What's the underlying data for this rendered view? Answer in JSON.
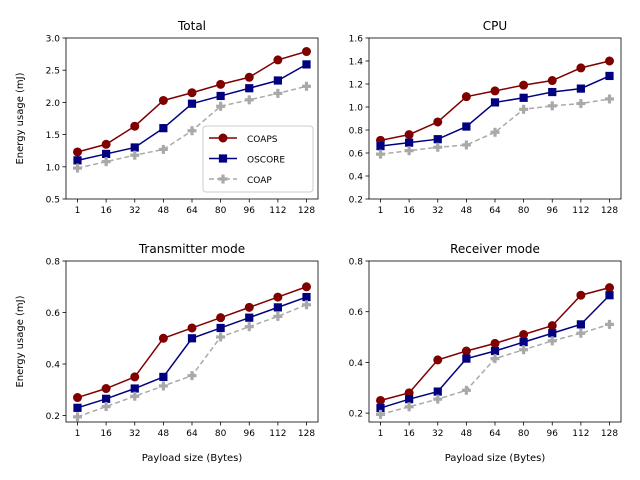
{
  "chart_data": [
    {
      "type": "line",
      "title": "Total",
      "xlabel": "",
      "ylabel": "Energy usage (mJ)",
      "categories": [
        "1",
        "16",
        "32",
        "48",
        "64",
        "80",
        "96",
        "112",
        "128"
      ],
      "ylim": [
        0.5,
        3.0
      ],
      "yticks": [
        "0.5",
        "1.0",
        "1.5",
        "2.0",
        "2.5",
        "3.0"
      ],
      "legend": "center-right",
      "series": [
        {
          "name": "COAPS",
          "color": "#800000",
          "marker": "circle",
          "values": [
            1.23,
            1.35,
            1.63,
            2.03,
            2.15,
            2.28,
            2.39,
            2.66,
            2.79
          ]
        },
        {
          "name": "OSCORE",
          "color": "#000080",
          "marker": "square",
          "values": [
            1.1,
            1.2,
            1.3,
            1.6,
            1.98,
            2.1,
            2.22,
            2.34,
            2.59
          ]
        },
        {
          "name": "COAP",
          "color": "#a9a9a9",
          "marker": "plus",
          "values": [
            0.98,
            1.08,
            1.18,
            1.27,
            1.56,
            1.94,
            2.04,
            2.14,
            2.25
          ]
        }
      ]
    },
    {
      "type": "line",
      "title": "CPU",
      "xlabel": "",
      "ylabel": "",
      "categories": [
        "1",
        "16",
        "32",
        "48",
        "64",
        "80",
        "96",
        "112",
        "128"
      ],
      "ylim": [
        0.2,
        1.6
      ],
      "yticks": [
        "0.2",
        "0.4",
        "0.6",
        "0.8",
        "1.0",
        "1.2",
        "1.4",
        "1.6"
      ],
      "legend": "",
      "series": [
        {
          "name": "COAPS",
          "color": "#800000",
          "marker": "circle",
          "values": [
            0.71,
            0.76,
            0.87,
            1.09,
            1.14,
            1.19,
            1.23,
            1.34,
            1.4
          ]
        },
        {
          "name": "OSCORE",
          "color": "#000080",
          "marker": "square",
          "values": [
            0.66,
            0.69,
            0.72,
            0.83,
            1.04,
            1.08,
            1.13,
            1.16,
            1.27
          ]
        },
        {
          "name": "COAP",
          "color": "#a9a9a9",
          "marker": "plus",
          "values": [
            0.59,
            0.62,
            0.65,
            0.67,
            0.78,
            0.98,
            1.01,
            1.03,
            1.07
          ]
        }
      ]
    },
    {
      "type": "line",
      "title": "Transmitter mode",
      "xlabel": "Payload size (Bytes)",
      "ylabel": "Energy usage (mJ)",
      "categories": [
        "1",
        "16",
        "32",
        "48",
        "64",
        "80",
        "96",
        "112",
        "128"
      ],
      "ylim": [
        0.175,
        0.8
      ],
      "yticks": [
        "0.2",
        "0.4",
        "0.6",
        "0.8"
      ],
      "legend": "",
      "series": [
        {
          "name": "COAPS",
          "color": "#800000",
          "marker": "circle",
          "values": [
            0.27,
            0.305,
            0.35,
            0.5,
            0.54,
            0.58,
            0.62,
            0.66,
            0.7
          ]
        },
        {
          "name": "OSCORE",
          "color": "#000080",
          "marker": "square",
          "values": [
            0.23,
            0.265,
            0.305,
            0.35,
            0.5,
            0.54,
            0.58,
            0.62,
            0.66
          ]
        },
        {
          "name": "COAP",
          "color": "#a9a9a9",
          "marker": "plus",
          "values": [
            0.195,
            0.235,
            0.275,
            0.315,
            0.355,
            0.505,
            0.545,
            0.585,
            0.63
          ]
        }
      ]
    },
    {
      "type": "line",
      "title": "Receiver mode",
      "xlabel": "Payload size (Bytes)",
      "ylabel": "",
      "categories": [
        "1",
        "16",
        "32",
        "48",
        "64",
        "80",
        "96",
        "112",
        "128"
      ],
      "ylim": [
        0.165,
        0.8
      ],
      "yticks": [
        "0.2",
        "0.4",
        "0.6",
        "0.8"
      ],
      "legend": "",
      "series": [
        {
          "name": "COAPS",
          "color": "#800000",
          "marker": "circle",
          "values": [
            0.25,
            0.28,
            0.41,
            0.445,
            0.475,
            0.51,
            0.545,
            0.665,
            0.695
          ]
        },
        {
          "name": "OSCORE",
          "color": "#000080",
          "marker": "square",
          "values": [
            0.22,
            0.255,
            0.285,
            0.415,
            0.445,
            0.48,
            0.515,
            0.55,
            0.665
          ]
        },
        {
          "name": "COAP",
          "color": "#a9a9a9",
          "marker": "plus",
          "values": [
            0.195,
            0.225,
            0.255,
            0.29,
            0.415,
            0.45,
            0.485,
            0.515,
            0.55
          ]
        }
      ]
    }
  ]
}
